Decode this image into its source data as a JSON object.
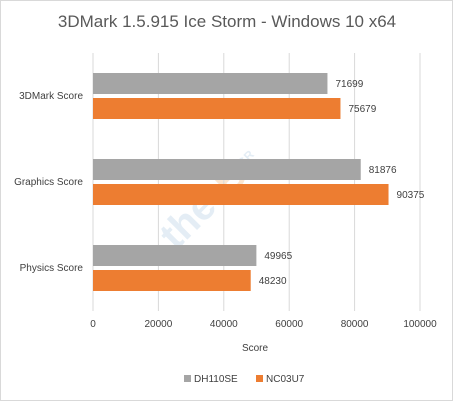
{
  "chart_data": {
    "type": "bar",
    "orientation": "horizontal",
    "title": "3DMark 1.5.915 Ice Storm - Windows 10 x64",
    "xlabel": "Score",
    "ylabel": "",
    "xlim": [
      0,
      100000
    ],
    "x_ticks": [
      0,
      20000,
      40000,
      60000,
      80000,
      100000
    ],
    "grid": true,
    "legend_position": "bottom",
    "categories": [
      "3DMark Score",
      "Graphics Score",
      "Physics Score"
    ],
    "series": [
      {
        "name": "DH110SE",
        "color": "#a5a5a5",
        "values": [
          71699,
          81876,
          49965
        ]
      },
      {
        "name": "NC03U7",
        "color": "#ed7d31",
        "values": [
          75679,
          90375,
          48230
        ]
      }
    ],
    "watermark_text": "the",
    "watermark_logo": "B",
    "watermark_suffix": ".GR"
  }
}
